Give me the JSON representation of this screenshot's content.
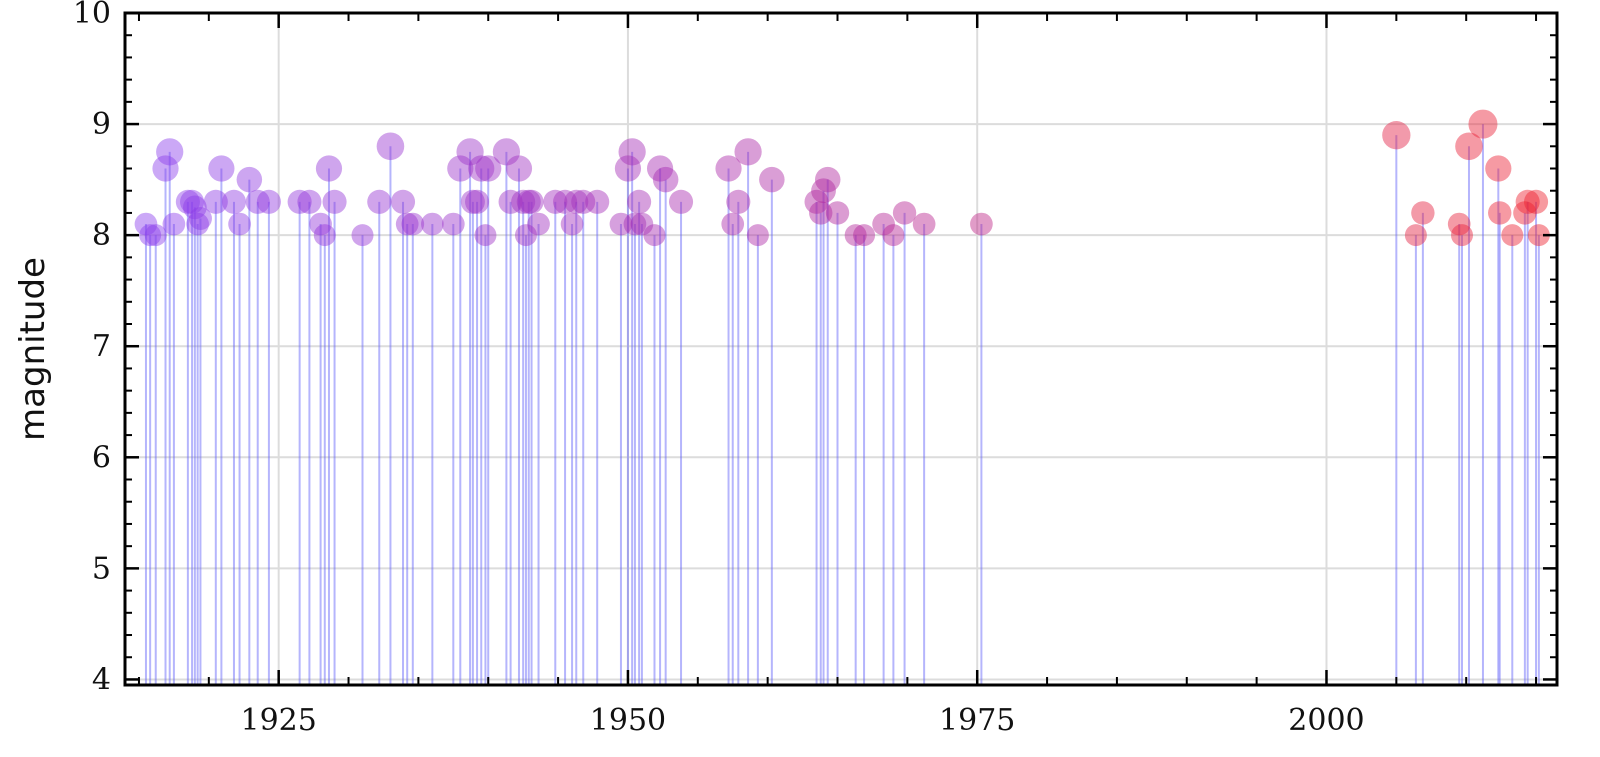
{
  "chart_data": {
    "type": "scatter",
    "variant": "stem",
    "title": "",
    "xlabel": "",
    "ylabel": "magnitude",
    "xlim": [
      1914,
      2016.5
    ],
    "ylim": [
      3.95,
      10
    ],
    "xticks": [
      1925,
      1950,
      1975,
      2000
    ],
    "yticks": [
      4,
      5,
      6,
      7,
      8,
      9,
      10
    ],
    "grid": true,
    "legend": "none",
    "color_scale": {
      "start": "#8a3ff0",
      "mid": "#b0249c",
      "end": "#f01f2a",
      "stem": "#5a5af8"
    },
    "points": [
      {
        "x": 1915.5,
        "y": 8.1
      },
      {
        "x": 1915.8,
        "y": 8.0
      },
      {
        "x": 1916.2,
        "y": 8.0
      },
      {
        "x": 1916.9,
        "y": 8.6
      },
      {
        "x": 1917.2,
        "y": 8.75
      },
      {
        "x": 1917.5,
        "y": 8.1
      },
      {
        "x": 1918.5,
        "y": 8.3
      },
      {
        "x": 1918.8,
        "y": 8.3
      },
      {
        "x": 1919.0,
        "y": 8.25
      },
      {
        "x": 1919.2,
        "y": 8.1
      },
      {
        "x": 1919.4,
        "y": 8.15
      },
      {
        "x": 1920.5,
        "y": 8.3
      },
      {
        "x": 1920.9,
        "y": 8.6
      },
      {
        "x": 1921.8,
        "y": 8.3
      },
      {
        "x": 1922.2,
        "y": 8.1
      },
      {
        "x": 1922.9,
        "y": 8.5
      },
      {
        "x": 1923.5,
        "y": 8.3
      },
      {
        "x": 1924.3,
        "y": 8.3
      },
      {
        "x": 1926.5,
        "y": 8.3
      },
      {
        "x": 1927.2,
        "y": 8.3
      },
      {
        "x": 1928.0,
        "y": 8.1
      },
      {
        "x": 1928.3,
        "y": 8.0
      },
      {
        "x": 1928.6,
        "y": 8.6
      },
      {
        "x": 1929.0,
        "y": 8.3
      },
      {
        "x": 1931.0,
        "y": 8.0
      },
      {
        "x": 1932.2,
        "y": 8.3
      },
      {
        "x": 1933.0,
        "y": 8.8
      },
      {
        "x": 1933.9,
        "y": 8.3
      },
      {
        "x": 1934.2,
        "y": 8.1
      },
      {
        "x": 1934.6,
        "y": 8.1
      },
      {
        "x": 1936.0,
        "y": 8.1
      },
      {
        "x": 1937.5,
        "y": 8.1
      },
      {
        "x": 1938.0,
        "y": 8.6
      },
      {
        "x": 1938.7,
        "y": 8.75
      },
      {
        "x": 1938.9,
        "y": 8.3
      },
      {
        "x": 1939.2,
        "y": 8.3
      },
      {
        "x": 1939.5,
        "y": 8.6
      },
      {
        "x": 1939.8,
        "y": 8.0
      },
      {
        "x": 1940.0,
        "y": 8.6
      },
      {
        "x": 1941.3,
        "y": 8.75
      },
      {
        "x": 1941.6,
        "y": 8.3
      },
      {
        "x": 1942.2,
        "y": 8.6
      },
      {
        "x": 1942.5,
        "y": 8.3
      },
      {
        "x": 1942.7,
        "y": 8.0
      },
      {
        "x": 1942.9,
        "y": 8.3
      },
      {
        "x": 1943.1,
        "y": 8.3
      },
      {
        "x": 1943.6,
        "y": 8.1
      },
      {
        "x": 1944.8,
        "y": 8.3
      },
      {
        "x": 1945.5,
        "y": 8.3
      },
      {
        "x": 1946.0,
        "y": 8.1
      },
      {
        "x": 1946.3,
        "y": 8.3
      },
      {
        "x": 1946.8,
        "y": 8.3
      },
      {
        "x": 1947.8,
        "y": 8.3
      },
      {
        "x": 1949.5,
        "y": 8.1
      },
      {
        "x": 1950.0,
        "y": 8.6
      },
      {
        "x": 1950.3,
        "y": 8.75
      },
      {
        "x": 1950.5,
        "y": 8.1
      },
      {
        "x": 1950.8,
        "y": 8.3
      },
      {
        "x": 1951.0,
        "y": 8.1
      },
      {
        "x": 1951.9,
        "y": 8.0
      },
      {
        "x": 1952.3,
        "y": 8.6
      },
      {
        "x": 1952.7,
        "y": 8.5
      },
      {
        "x": 1953.8,
        "y": 8.3
      },
      {
        "x": 1957.2,
        "y": 8.6
      },
      {
        "x": 1957.5,
        "y": 8.1
      },
      {
        "x": 1957.9,
        "y": 8.3
      },
      {
        "x": 1958.6,
        "y": 8.75
      },
      {
        "x": 1959.3,
        "y": 8.0
      },
      {
        "x": 1960.3,
        "y": 8.5
      },
      {
        "x": 1963.5,
        "y": 8.3
      },
      {
        "x": 1963.8,
        "y": 8.2
      },
      {
        "x": 1964.0,
        "y": 8.4
      },
      {
        "x": 1964.3,
        "y": 8.5
      },
      {
        "x": 1965.0,
        "y": 8.2
      },
      {
        "x": 1966.3,
        "y": 8.0
      },
      {
        "x": 1966.9,
        "y": 8.0
      },
      {
        "x": 1968.3,
        "y": 8.1
      },
      {
        "x": 1969.0,
        "y": 8.0
      },
      {
        "x": 1969.8,
        "y": 8.2
      },
      {
        "x": 1971.2,
        "y": 8.1
      },
      {
        "x": 1975.3,
        "y": 8.1
      },
      {
        "x": 2005.0,
        "y": 8.9
      },
      {
        "x": 2006.4,
        "y": 8.0
      },
      {
        "x": 2006.9,
        "y": 8.2
      },
      {
        "x": 2009.5,
        "y": 8.1
      },
      {
        "x": 2009.7,
        "y": 8.0
      },
      {
        "x": 2010.2,
        "y": 8.8
      },
      {
        "x": 2011.2,
        "y": 9.0
      },
      {
        "x": 2012.3,
        "y": 8.6
      },
      {
        "x": 2012.4,
        "y": 8.2
      },
      {
        "x": 2013.3,
        "y": 8.0
      },
      {
        "x": 2014.2,
        "y": 8.2
      },
      {
        "x": 2014.4,
        "y": 8.3
      },
      {
        "x": 2015.0,
        "y": 8.3
      },
      {
        "x": 2015.2,
        "y": 8.0
      }
    ]
  }
}
